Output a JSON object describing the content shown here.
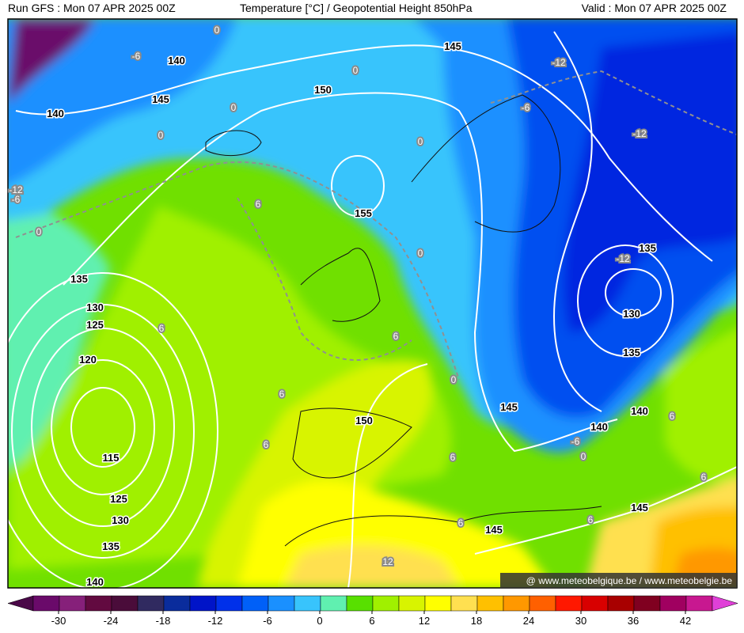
{
  "header": {
    "left": "Run GFS : Mon 07 APR 2025 00Z",
    "center": "Temperature [°C] / Geopotential Height 850hPa",
    "right": "Valid : Mon 07 APR 2025 00Z"
  },
  "map": {
    "height_labels": [
      "140",
      "145",
      "140",
      "145",
      "150",
      "155",
      "135",
      "130",
      "125",
      "120",
      "115",
      "125",
      "130",
      "135",
      "140",
      "150",
      "145",
      "140",
      "140",
      "145",
      "145",
      "135",
      "130",
      "135"
    ],
    "temperature_labels": [
      "-6",
      "0",
      "0",
      "0",
      "0",
      "0",
      "-12",
      "-6",
      "-12",
      "-12",
      "-6",
      "0",
      "6",
      "0",
      "-12",
      "6",
      "6",
      "0",
      "6",
      "6",
      "-6",
      "0",
      "6",
      "6",
      "6",
      "6",
      "6",
      "12"
    ]
  },
  "colorbar": {
    "colors": [
      "#4a0848",
      "#6a0a6a",
      "#86207a",
      "#620a40",
      "#4a0c3a",
      "#302a60",
      "#0a2c9c",
      "#0014c8",
      "#0030ea",
      "#0060f8",
      "#1a90ff",
      "#38c4fc",
      "#60f0b0",
      "#58e000",
      "#a0f000",
      "#d8f400",
      "#ffff00",
      "#ffe050",
      "#ffc000",
      "#ff9800",
      "#ff6000",
      "#ff1800",
      "#d80000",
      "#a80000",
      "#800020",
      "#a00060",
      "#c81890",
      "#e040d8"
    ],
    "ticks": [
      -30,
      -24,
      -18,
      -12,
      -6,
      0,
      6,
      12,
      18,
      24,
      30,
      36,
      42
    ]
  },
  "watermark": "@ www.meteobelgique.be / www.meteobelgie.be"
}
